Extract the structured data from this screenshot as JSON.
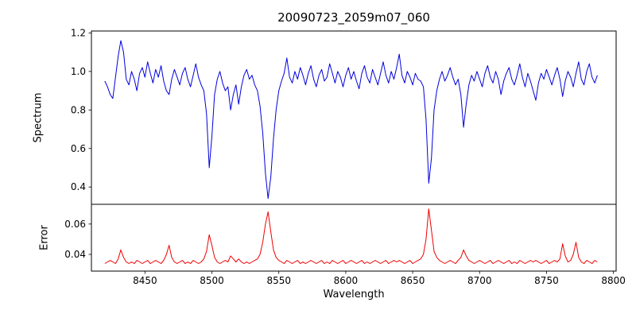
{
  "chart_data": {
    "type": "line",
    "title": "20090723_2059m07_060",
    "xlabel": "Wavelength",
    "legend": "none",
    "grid": false,
    "x_start": 8420,
    "x_step": 2,
    "xlim": [
      8410,
      8802
    ],
    "x_ticks": [
      "8450",
      "8500",
      "8550",
      "8600",
      "8650",
      "8700",
      "8750",
      "8800"
    ],
    "panels": [
      {
        "name": "spectrum",
        "ylabel": "Spectrum",
        "color": "#0000dd",
        "ylim": [
          0.31,
          1.21
        ],
        "y_ticks": [
          "0.4",
          "0.6",
          "0.8",
          "1.0",
          "1.2"
        ],
        "absorption_line_centers": [
          8498,
          8514,
          8542,
          8662,
          8688
        ],
        "values": [
          0.95,
          0.92,
          0.88,
          0.86,
          0.97,
          1.08,
          1.16,
          1.1,
          0.96,
          0.93,
          1.0,
          0.96,
          0.9,
          0.99,
          1.02,
          0.97,
          1.05,
          0.99,
          0.94,
          1.01,
          0.97,
          1.03,
          0.95,
          0.9,
          0.88,
          0.96,
          1.01,
          0.97,
          0.93,
          0.99,
          1.02,
          0.96,
          0.92,
          0.98,
          1.04,
          0.97,
          0.93,
          0.9,
          0.78,
          0.5,
          0.66,
          0.88,
          0.96,
          1.0,
          0.94,
          0.9,
          0.92,
          0.8,
          0.88,
          0.93,
          0.83,
          0.92,
          0.98,
          1.01,
          0.96,
          0.98,
          0.93,
          0.9,
          0.82,
          0.68,
          0.47,
          0.34,
          0.45,
          0.65,
          0.8,
          0.9,
          0.95,
          0.99,
          1.07,
          0.97,
          0.94,
          1.0,
          0.96,
          1.02,
          0.98,
          0.93,
          0.99,
          1.03,
          0.96,
          0.92,
          0.98,
          1.01,
          0.95,
          0.97,
          1.04,
          0.99,
          0.94,
          1.0,
          0.97,
          0.92,
          0.98,
          1.02,
          0.96,
          1.0,
          0.95,
          0.91,
          0.99,
          1.03,
          0.97,
          0.94,
          1.01,
          0.97,
          0.93,
          0.99,
          1.05,
          0.98,
          0.94,
          1.0,
          0.96,
          1.02,
          1.09,
          0.98,
          0.94,
          1.0,
          0.97,
          0.93,
          0.99,
          0.96,
          0.95,
          0.92,
          0.75,
          0.42,
          0.55,
          0.8,
          0.9,
          0.96,
          1.0,
          0.95,
          0.98,
          1.02,
          0.97,
          0.93,
          0.96,
          0.88,
          0.71,
          0.83,
          0.93,
          0.98,
          0.95,
          1.0,
          0.96,
          0.92,
          0.99,
          1.03,
          0.97,
          0.94,
          1.0,
          0.96,
          0.88,
          0.95,
          0.99,
          1.02,
          0.96,
          0.93,
          0.98,
          1.04,
          0.97,
          0.92,
          0.99,
          0.95,
          0.9,
          0.85,
          0.94,
          0.99,
          0.96,
          1.01,
          0.97,
          0.93,
          0.98,
          1.02,
          0.96,
          0.87,
          0.95,
          1.0,
          0.97,
          0.92,
          0.99,
          1.05,
          0.96,
          0.93,
          1.0,
          1.04,
          0.97,
          0.94,
          0.98
        ]
      },
      {
        "name": "error",
        "ylabel": "Error",
        "color": "#ee0000",
        "ylim": [
          0.029,
          0.073
        ],
        "y_ticks": [
          "0.04",
          "0.06"
        ],
        "values": [
          0.034,
          0.035,
          0.036,
          0.035,
          0.034,
          0.037,
          0.043,
          0.038,
          0.035,
          0.034,
          0.035,
          0.034,
          0.036,
          0.035,
          0.034,
          0.035,
          0.036,
          0.034,
          0.035,
          0.036,
          0.035,
          0.034,
          0.036,
          0.04,
          0.046,
          0.038,
          0.035,
          0.034,
          0.035,
          0.036,
          0.034,
          0.035,
          0.034,
          0.036,
          0.035,
          0.034,
          0.035,
          0.037,
          0.042,
          0.053,
          0.046,
          0.038,
          0.035,
          0.034,
          0.035,
          0.036,
          0.035,
          0.039,
          0.037,
          0.035,
          0.037,
          0.035,
          0.034,
          0.035,
          0.034,
          0.035,
          0.036,
          0.037,
          0.04,
          0.048,
          0.06,
          0.068,
          0.055,
          0.043,
          0.038,
          0.036,
          0.035,
          0.034,
          0.036,
          0.035,
          0.034,
          0.035,
          0.036,
          0.034,
          0.035,
          0.034,
          0.035,
          0.036,
          0.035,
          0.034,
          0.035,
          0.036,
          0.034,
          0.035,
          0.034,
          0.036,
          0.035,
          0.034,
          0.035,
          0.036,
          0.034,
          0.035,
          0.036,
          0.035,
          0.034,
          0.035,
          0.036,
          0.034,
          0.035,
          0.034,
          0.035,
          0.036,
          0.035,
          0.034,
          0.035,
          0.036,
          0.034,
          0.035,
          0.036,
          0.035,
          0.036,
          0.035,
          0.034,
          0.035,
          0.036,
          0.034,
          0.035,
          0.036,
          0.037,
          0.04,
          0.05,
          0.07,
          0.056,
          0.042,
          0.038,
          0.036,
          0.035,
          0.034,
          0.035,
          0.036,
          0.035,
          0.034,
          0.036,
          0.038,
          0.043,
          0.039,
          0.036,
          0.035,
          0.034,
          0.035,
          0.036,
          0.035,
          0.034,
          0.035,
          0.036,
          0.034,
          0.035,
          0.036,
          0.035,
          0.034,
          0.035,
          0.036,
          0.034,
          0.035,
          0.034,
          0.036,
          0.035,
          0.034,
          0.035,
          0.036,
          0.035,
          0.036,
          0.035,
          0.034,
          0.035,
          0.036,
          0.034,
          0.035,
          0.036,
          0.035,
          0.037,
          0.047,
          0.039,
          0.035,
          0.036,
          0.04,
          0.048,
          0.038,
          0.035,
          0.034,
          0.036,
          0.035,
          0.034,
          0.036,
          0.035
        ]
      }
    ]
  }
}
